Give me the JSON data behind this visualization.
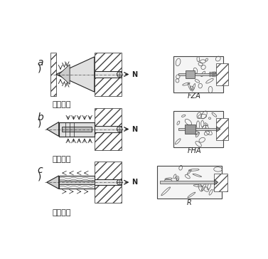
{
  "background_color": "#ffffff",
  "labels": {
    "label_a": "凸型结合",
    "label_b": "摩擦结合",
    "label_c": "材料结合",
    "fza": "FZA",
    "fha": "FHA",
    "r": "R"
  },
  "line_color": "#222222",
  "font_size_label": 8,
  "font_size_letter": 10,
  "font_size_tag": 7
}
